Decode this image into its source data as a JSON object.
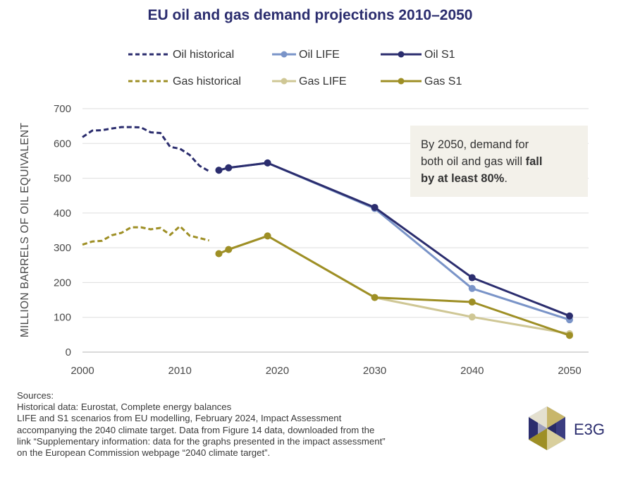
{
  "chart_data": {
    "type": "line",
    "title": "EU oil and gas demand projections 2010–2050",
    "ylabel": "MILLION BARRELS OF OIL EQUIVALENT",
    "xlabel": "",
    "xlim": [
      2000,
      2050
    ],
    "ylim": [
      0,
      700
    ],
    "x_ticks": [
      2000,
      2010,
      2020,
      2030,
      2040,
      2050
    ],
    "y_ticks": [
      0,
      100,
      200,
      300,
      400,
      500,
      600,
      700
    ],
    "grid": "horizontal",
    "legend_position": "top",
    "series": [
      {
        "name": "Oil historical",
        "style": "dashed",
        "color": "#2b2d6e",
        "x": [
          2000,
          2001,
          2002,
          2003,
          2004,
          2005,
          2006,
          2007,
          2008,
          2009,
          2010,
          2011,
          2012,
          2013
        ],
        "y": [
          618,
          637,
          638,
          643,
          647,
          647,
          646,
          632,
          630,
          590,
          585,
          567,
          536,
          520
        ]
      },
      {
        "name": "Oil LIFE",
        "style": "solid-markers",
        "color": "#7a94c8",
        "x": [
          2014,
          2015,
          2019,
          2030,
          2040,
          2050
        ],
        "y": [
          523,
          530,
          544,
          413,
          183,
          93
        ]
      },
      {
        "name": "Oil S1",
        "style": "solid-markers",
        "color": "#2b2d6e",
        "x": [
          2014,
          2015,
          2019,
          2030,
          2040,
          2050
        ],
        "y": [
          523,
          530,
          544,
          416,
          214,
          104
        ]
      },
      {
        "name": "Gas historical",
        "style": "dashed",
        "color": "#9e8f25",
        "x": [
          2000,
          2001,
          2002,
          2003,
          2004,
          2005,
          2006,
          2007,
          2008,
          2009,
          2010,
          2011,
          2012,
          2013
        ],
        "y": [
          309,
          318,
          320,
          336,
          343,
          359,
          359,
          353,
          357,
          337,
          362,
          335,
          328,
          321
        ]
      },
      {
        "name": "Gas LIFE",
        "style": "solid-markers",
        "color": "#cfc795",
        "x": [
          2014,
          2015,
          2019,
          2030,
          2040,
          2050
        ],
        "y": [
          283,
          295,
          334,
          157,
          101,
          53
        ]
      },
      {
        "name": "Gas S1",
        "style": "solid-markers",
        "color": "#9e8f25",
        "x": [
          2014,
          2015,
          2019,
          2030,
          2040,
          2050
        ],
        "y": [
          283,
          295,
          334,
          157,
          144,
          48
        ]
      }
    ],
    "legend": [
      [
        "Oil historical",
        "Oil LIFE",
        "Oil S1"
      ],
      [
        "Gas historical",
        "Gas LIFE",
        "Gas S1"
      ]
    ],
    "annotation": {
      "text_before": "By 2050, demand for both oil and gas will ",
      "text_bold": "fall by at least 80%",
      "text_after": "."
    }
  },
  "sources": {
    "heading": "Sources:",
    "lines": [
      "Historical data: Eurostat, Complete energy balances",
      "LIFE and S1 scenarios from EU modelling, February 2024, Impact Assessment",
      "accompanying the 2040 climate target. Data from Figure 14 data, downloaded from the",
      "link “Supplementary information: data for the graphs presented in the impact assessment”",
      "on the European Commission webpage “2040 climate target”."
    ]
  },
  "logo": {
    "text": "E3G"
  },
  "colors": {
    "navy": "#2b2d6e",
    "light_blue": "#7a94c8",
    "olive": "#9e8f25",
    "beige": "#cfc795",
    "annotation_bg": "#f3f1ea"
  }
}
